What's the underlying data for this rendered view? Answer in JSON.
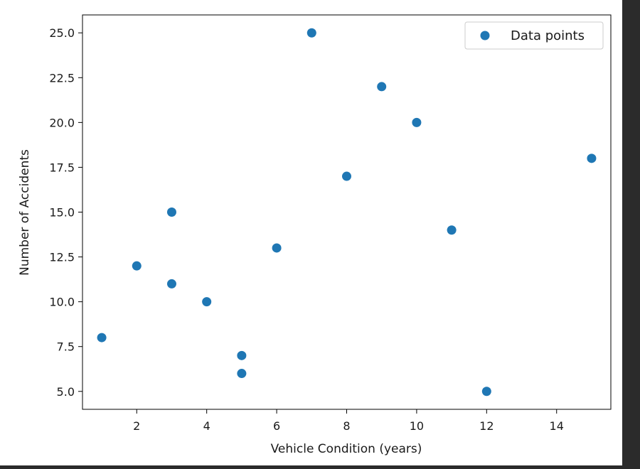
{
  "chart_data": {
    "type": "scatter",
    "title": "",
    "xlabel": "Vehicle Condition (years)",
    "ylabel": "Number of Accidents",
    "xlim": [
      0.45,
      15.55
    ],
    "ylim": [
      4,
      26
    ],
    "x_ticks": [
      2,
      4,
      6,
      8,
      10,
      12,
      14
    ],
    "x_tick_labels": [
      "2",
      "4",
      "6",
      "8",
      "10",
      "12",
      "14"
    ],
    "y_ticks": [
      5.0,
      7.5,
      10.0,
      12.5,
      15.0,
      17.5,
      20.0,
      22.5,
      25.0
    ],
    "y_tick_labels": [
      "5.0",
      "7.5",
      "10.0",
      "12.5",
      "15.0",
      "17.5",
      "20.0",
      "22.5",
      "25.0"
    ],
    "grid": false,
    "legend_position": "top-right",
    "series": [
      {
        "name": "Data points",
        "color": "#1f77b4",
        "points": [
          {
            "x": 1,
            "y": 8
          },
          {
            "x": 2,
            "y": 12
          },
          {
            "x": 3,
            "y": 15
          },
          {
            "x": 3,
            "y": 11
          },
          {
            "x": 4,
            "y": 10
          },
          {
            "x": 5,
            "y": 7
          },
          {
            "x": 5,
            "y": 6
          },
          {
            "x": 6,
            "y": 13
          },
          {
            "x": 7,
            "y": 25
          },
          {
            "x": 8,
            "y": 17
          },
          {
            "x": 9,
            "y": 22
          },
          {
            "x": 10,
            "y": 20
          },
          {
            "x": 11,
            "y": 14
          },
          {
            "x": 12,
            "y": 5
          },
          {
            "x": 15,
            "y": 18
          }
        ]
      }
    ]
  }
}
